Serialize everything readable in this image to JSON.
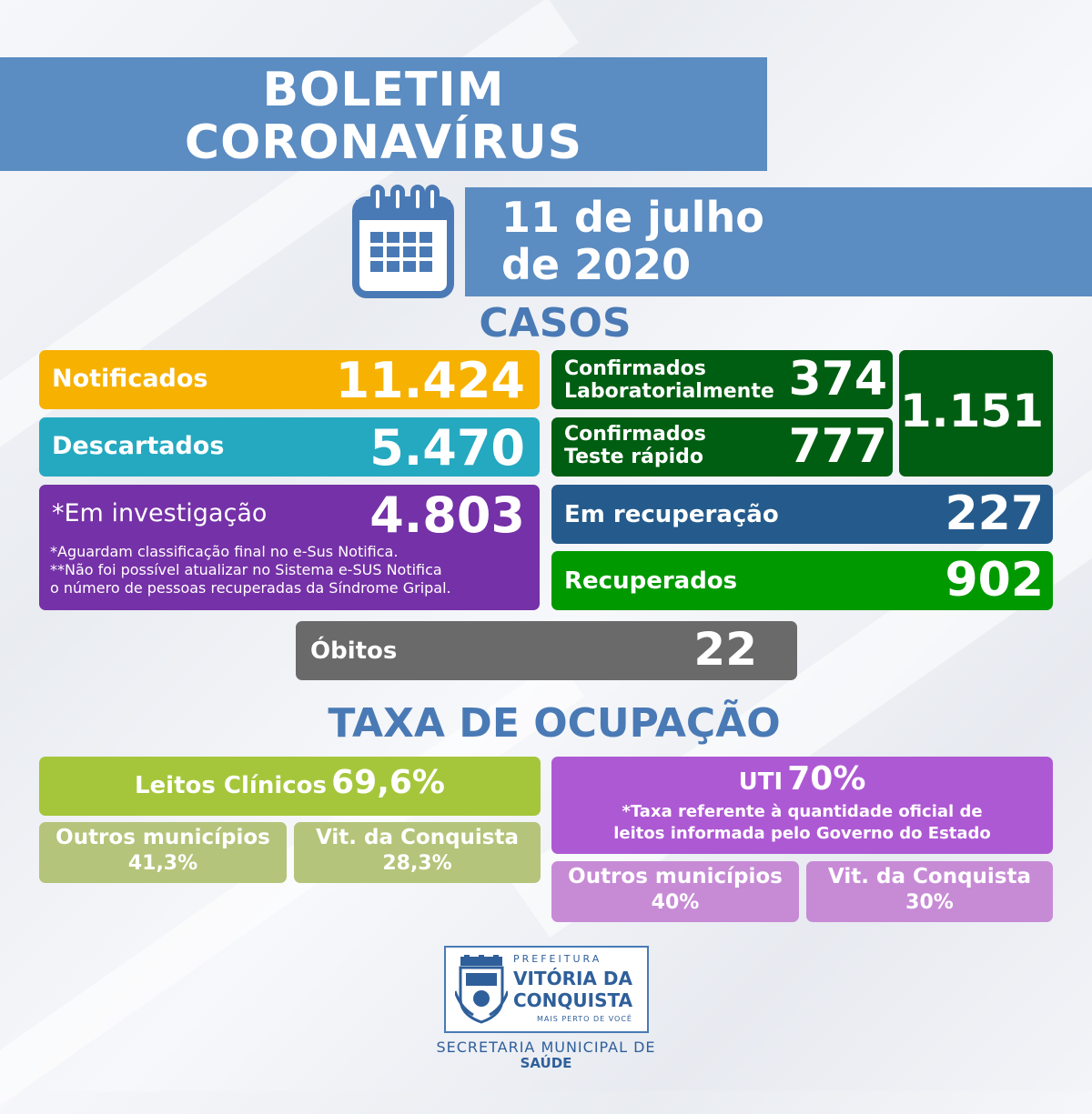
{
  "header": {
    "title_line1": "BOLETIM",
    "title_line2": "CORONAVÍRUS",
    "date_line1": "11 de julho",
    "date_line2": "de 2020",
    "calendar_icon": "calendar-icon"
  },
  "casos": {
    "section_title": "CASOS",
    "notificados": {
      "label": "Notificados",
      "value": "11.424",
      "color": "#f7b100"
    },
    "descartados": {
      "label": "Descartados",
      "value": "5.470",
      "color": "#24a9c0"
    },
    "investigacao": {
      "label": "*Em investigação",
      "value": "4.803",
      "color": "#7531a7",
      "note1": "*Aguardam classificação final no e-Sus Notifica.",
      "note2": "**Não foi possível atualizar no Sistema e-SUS Notifica",
      "note3": "o número de pessoas recuperadas da Síndrome Gripal."
    },
    "confirmados_lab": {
      "label_line1": "Confirmados",
      "label_line2": "Laboratorialmente",
      "value": "374",
      "color": "#005e12"
    },
    "confirmados_rapido": {
      "label_line1": "Confirmados",
      "label_line2": "Teste rápido",
      "value": "777",
      "color": "#005e12"
    },
    "confirmados_total": {
      "value": "1.151",
      "color": "#005e12"
    },
    "em_recuperacao": {
      "label": "Em recuperação",
      "value": "227",
      "color": "#255b8c"
    },
    "recuperados": {
      "label": "Recuperados",
      "value": "902",
      "color": "#009a00"
    },
    "obitos": {
      "label": "Óbitos",
      "value": "22",
      "color": "#6b6a6a"
    }
  },
  "ocupacao": {
    "section_title": "TAXA DE OCUPAÇÃO",
    "leitos_clinicos": {
      "label": "Leitos Clínicos",
      "value": "69,6%",
      "color": "#a5c63b",
      "sub_color": "#b4c47a",
      "outros_label": "Outros municípios",
      "outros_value": "41,3%",
      "vit_label": "Vit. da Conquista",
      "vit_value": "28,3%"
    },
    "uti": {
      "label": "UTI",
      "value": "70%",
      "color": "#ae59d4",
      "sub_color": "#c78bd6",
      "note1": "*Taxa referente à quantidade oficial de",
      "note2": "leitos informada pelo Governo do Estado",
      "outros_label": "Outros municípios",
      "outros_value": "40%",
      "vit_label": "Vit. da Conquista",
      "vit_value": "30%"
    }
  },
  "footer": {
    "logo_prefeitura": "PREFEITURA",
    "logo_city1": "VITÓRIA DA",
    "logo_city2": "CONQUISTA",
    "logo_slogan": "MAIS PERTO DE VOCÊ",
    "secretaria_line1": "SECRETARIA MUNICIPAL DE",
    "secretaria_line2": "SAÚDE",
    "crest_icon": "coat-of-arms-icon"
  }
}
